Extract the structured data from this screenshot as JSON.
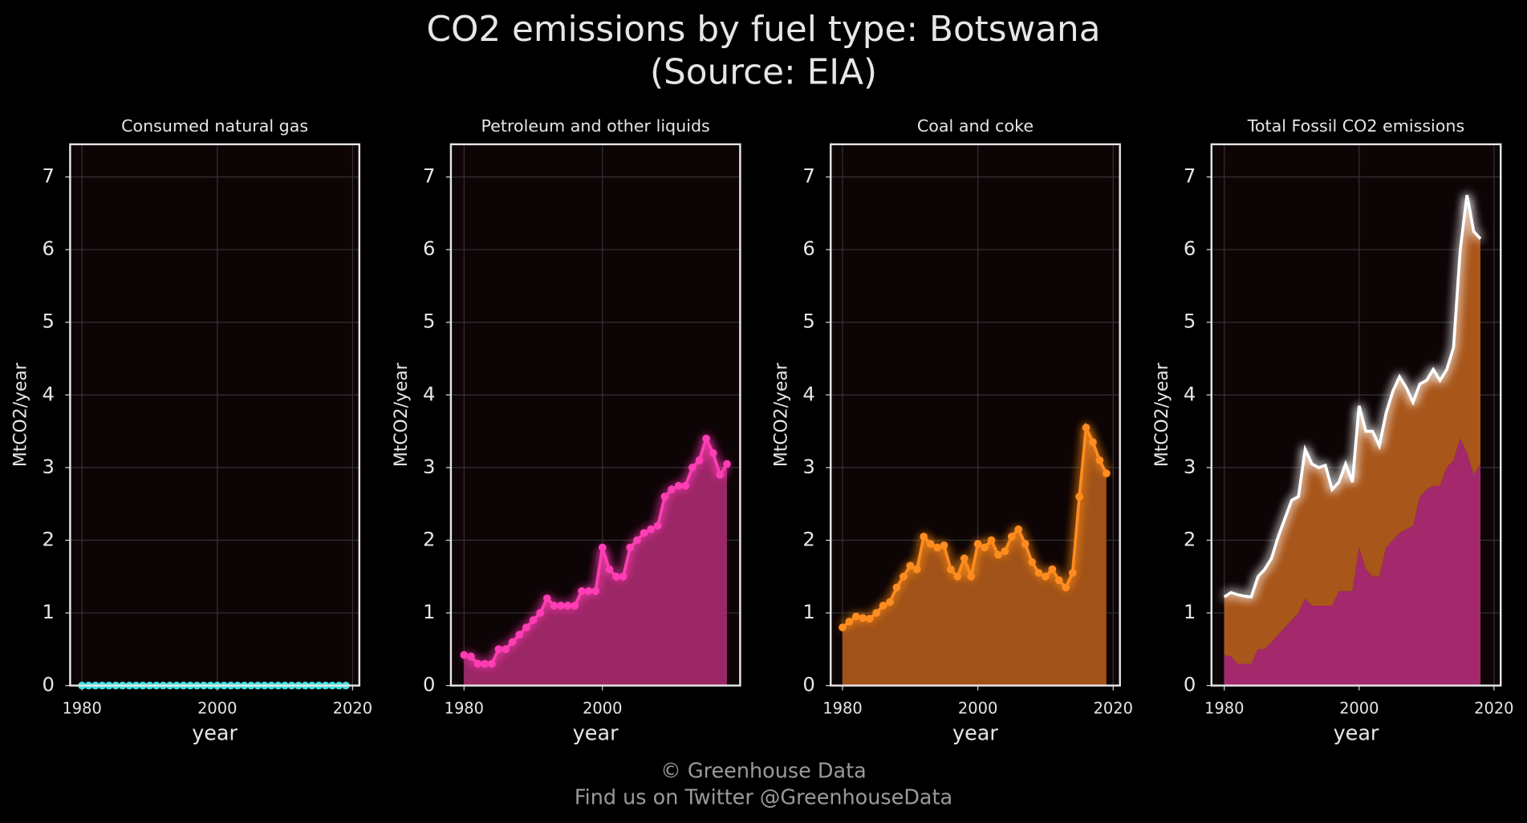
{
  "title": "CO2 emissions by fuel type: Botswana",
  "subtitle": "(Source: EIA)",
  "footer": [
    "© Greenhouse Data",
    "Find us on Twitter @GreenhouseData"
  ],
  "chart_data": [
    {
      "type": "area",
      "title": "Consumed natural gas",
      "xlabel": "year",
      "ylabel": "MtCO2/year",
      "x": [
        1980,
        1981,
        1982,
        1983,
        1984,
        1985,
        1986,
        1987,
        1988,
        1989,
        1990,
        1991,
        1992,
        1993,
        1994,
        1995,
        1996,
        1997,
        1998,
        1999,
        2000,
        2001,
        2002,
        2003,
        2004,
        2005,
        2006,
        2007,
        2008,
        2009,
        2010,
        2011,
        2012,
        2013,
        2014,
        2015,
        2016,
        2017,
        2018,
        2019
      ],
      "series": [
        {
          "color": "#3fe3e3",
          "fill": "#1f7a7a",
          "values": [
            0,
            0,
            0,
            0,
            0,
            0,
            0,
            0,
            0,
            0,
            0,
            0,
            0,
            0,
            0,
            0,
            0,
            0,
            0,
            0,
            0,
            0,
            0,
            0,
            0,
            0,
            0,
            0,
            0,
            0,
            0,
            0,
            0,
            0,
            0,
            0,
            0,
            0,
            0,
            0
          ]
        }
      ],
      "xlim": [
        1978.25,
        2021
      ],
      "ylim": [
        0,
        7.45
      ],
      "xticks": [
        1980,
        2000,
        2020
      ],
      "yticks": [
        0,
        1,
        2,
        3,
        4,
        5,
        6,
        7
      ],
      "grid": true
    },
    {
      "type": "area",
      "title": "Petroleum and other liquids",
      "xlabel": "year",
      "ylabel": "MtCO2/year",
      "x": [
        1980,
        1981,
        1982,
        1983,
        1984,
        1985,
        1986,
        1987,
        1988,
        1989,
        1990,
        1991,
        1992,
        1993,
        1994,
        1995,
        1996,
        1997,
        1998,
        1999,
        2000,
        2001,
        2002,
        2003,
        2004,
        2005,
        2006,
        2007,
        2008,
        2009,
        2010,
        2011,
        2012,
        2013,
        2014,
        2015,
        2016,
        2017,
        2018
      ],
      "series": [
        {
          "color": "#ff3db4",
          "fill": "#a3296c",
          "values": [
            0.42,
            0.4,
            0.3,
            0.3,
            0.3,
            0.5,
            0.5,
            0.6,
            0.7,
            0.8,
            0.9,
            1.0,
            1.2,
            1.1,
            1.1,
            1.1,
            1.1,
            1.3,
            1.3,
            1.3,
            1.9,
            1.6,
            1.5,
            1.5,
            1.9,
            2.0,
            2.1,
            2.15,
            2.2,
            2.6,
            2.7,
            2.75,
            2.75,
            3.0,
            3.1,
            3.4,
            3.2,
            2.9,
            3.05
          ]
        }
      ],
      "xlim": [
        1978.1,
        2019.9
      ],
      "ylim": [
        0,
        7.45
      ],
      "xticks": [
        1980,
        2000
      ],
      "yticks": [
        0,
        1,
        2,
        3,
        4,
        5,
        6,
        7
      ],
      "grid": true
    },
    {
      "type": "area",
      "title": "Coal and coke",
      "xlabel": "year",
      "ylabel": "MtCO2/year",
      "x": [
        1980,
        1981,
        1982,
        1983,
        1984,
        1985,
        1986,
        1987,
        1988,
        1989,
        1990,
        1991,
        1992,
        1993,
        1994,
        1995,
        1996,
        1997,
        1998,
        1999,
        2000,
        2001,
        2002,
        2003,
        2004,
        2005,
        2006,
        2007,
        2008,
        2009,
        2010,
        2011,
        2012,
        2013,
        2014,
        2015,
        2016,
        2017,
        2018,
        2019
      ],
      "series": [
        {
          "color": "#ff8c1f",
          "fill": "#a9561a",
          "values": [
            0.8,
            0.88,
            0.95,
            0.93,
            0.92,
            1.0,
            1.1,
            1.15,
            1.35,
            1.5,
            1.65,
            1.6,
            2.05,
            1.95,
            1.9,
            1.93,
            1.6,
            1.5,
            1.75,
            1.5,
            1.95,
            1.9,
            2.0,
            1.8,
            1.85,
            2.05,
            2.15,
            1.95,
            1.7,
            1.55,
            1.5,
            1.6,
            1.45,
            1.35,
            1.55,
            2.6,
            3.55,
            3.35,
            3.1,
            2.92
          ]
        }
      ],
      "xlim": [
        1978.25,
        2021
      ],
      "ylim": [
        0,
        7.45
      ],
      "xticks": [
        1980,
        2000,
        2020
      ],
      "yticks": [
        0,
        1,
        2,
        3,
        4,
        5,
        6,
        7
      ],
      "grid": true
    },
    {
      "type": "stacked_area",
      "title": "Total Fossil CO2 emissions",
      "xlabel": "year",
      "ylabel": "MtCO2/year",
      "x": [
        1980,
        1981,
        1982,
        1983,
        1984,
        1985,
        1986,
        1987,
        1988,
        1989,
        1990,
        1991,
        1992,
        1993,
        1994,
        1995,
        1996,
        1997,
        1998,
        1999,
        2000,
        2001,
        2002,
        2003,
        2004,
        2005,
        2006,
        2007,
        2008,
        2009,
        2010,
        2011,
        2012,
        2013,
        2014,
        2015,
        2016,
        2017,
        2018
      ],
      "series": [
        {
          "fill": "#a3296c",
          "values": [
            0.42,
            0.4,
            0.3,
            0.3,
            0.3,
            0.5,
            0.5,
            0.6,
            0.7,
            0.8,
            0.9,
            1.0,
            1.2,
            1.1,
            1.1,
            1.1,
            1.1,
            1.3,
            1.3,
            1.3,
            1.9,
            1.6,
            1.5,
            1.5,
            1.9,
            2.0,
            2.1,
            2.15,
            2.2,
            2.6,
            2.7,
            2.75,
            2.75,
            3.0,
            3.1,
            3.4,
            3.2,
            2.9,
            3.05
          ]
        },
        {
          "fill": "#a9561a",
          "values": [
            0.8,
            0.88,
            0.95,
            0.93,
            0.92,
            1.0,
            1.1,
            1.15,
            1.35,
            1.5,
            1.65,
            1.6,
            2.05,
            1.95,
            1.9,
            1.93,
            1.6,
            1.5,
            1.75,
            1.5,
            1.95,
            1.9,
            2.0,
            1.8,
            1.85,
            2.05,
            2.15,
            1.95,
            1.7,
            1.55,
            1.5,
            1.6,
            1.45,
            1.35,
            1.55,
            2.6,
            3.55,
            3.35,
            3.1
          ]
        }
      ],
      "total_color": "#ffffff",
      "xlim": [
        1978.1,
        2021
      ],
      "ylim": [
        0,
        7.45
      ],
      "xticks": [
        1980,
        2000,
        2020
      ],
      "yticks": [
        0,
        1,
        2,
        3,
        4,
        5,
        6,
        7
      ],
      "grid": true
    }
  ]
}
